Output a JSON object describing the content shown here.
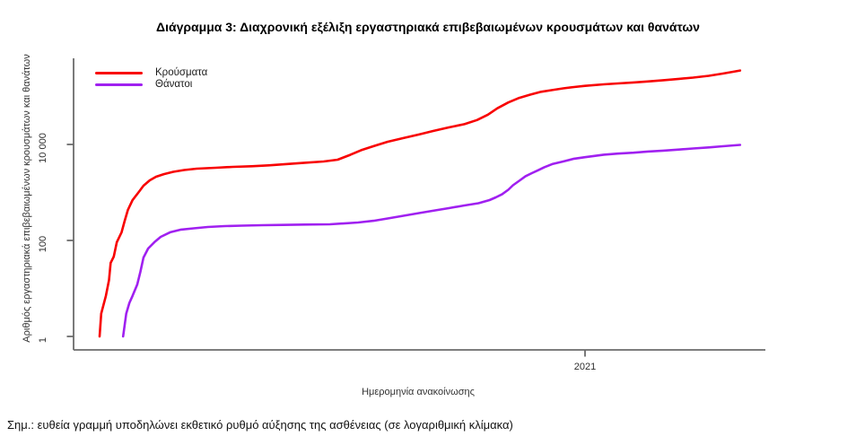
{
  "note": "Σημ.: ευθεία γραμμή υποδηλώνει εκθετικό ρυθμό αύξησης της ασθένειας (σε λογαριθμική κλίμακα)",
  "chart_data": {
    "type": "line",
    "title": "Διάγραμμα 3: Διαχρονική εξέλιξη εργαστηριακά επιβεβαιωμένων κρουσμάτων και θανάτων",
    "xlabel": "Ημερομηνία ανακοίνωσης",
    "ylabel": "Αριθμός εργαστηριακά επιβεβαιωμένων κρουσμάτων και θανάτων",
    "y_scale": "log10",
    "ylim": [
      1,
      500000
    ],
    "grid": false,
    "legend_position": "top-left-inside",
    "axis_color": "#6b6b6b",
    "y_ticks": [
      {
        "value": 1,
        "label": "1"
      },
      {
        "value": 100,
        "label": "100"
      },
      {
        "value": 10000,
        "label": "10 000"
      }
    ],
    "x_ticks": [
      {
        "date": "2021-01-01",
        "label": "2021"
      }
    ],
    "x_range": {
      "start": "2020-02-26",
      "end": "2021-04-10"
    },
    "series": [
      {
        "name": "Κρούσματα",
        "color": "#f80000",
        "points": [
          [
            "2020-02-26",
            1
          ],
          [
            "2020-02-27",
            3
          ],
          [
            "2020-03-01",
            7
          ],
          [
            "2020-03-03",
            15
          ],
          [
            "2020-03-04",
            34
          ],
          [
            "2020-03-06",
            46
          ],
          [
            "2020-03-08",
            92
          ],
          [
            "2020-03-11",
            148
          ],
          [
            "2020-03-13",
            258
          ],
          [
            "2020-03-15",
            430
          ],
          [
            "2020-03-18",
            692
          ],
          [
            "2020-03-22",
            1020
          ],
          [
            "2020-03-25",
            1380
          ],
          [
            "2020-03-29",
            1790
          ],
          [
            "2020-04-02",
            2120
          ],
          [
            "2020-04-07",
            2410
          ],
          [
            "2020-04-13",
            2690
          ],
          [
            "2020-04-20",
            2930
          ],
          [
            "2020-04-28",
            3130
          ],
          [
            "2020-05-10",
            3270
          ],
          [
            "2020-05-21",
            3410
          ],
          [
            "2020-06-02",
            3520
          ],
          [
            "2020-06-13",
            3670
          ],
          [
            "2020-06-25",
            3910
          ],
          [
            "2020-07-06",
            4150
          ],
          [
            "2020-07-18",
            4420
          ],
          [
            "2020-07-27",
            4810
          ],
          [
            "2020-08-04",
            6070
          ],
          [
            "2020-08-11",
            7590
          ],
          [
            "2020-08-19",
            9200
          ],
          [
            "2020-08-28",
            11400
          ],
          [
            "2020-09-07",
            13600
          ],
          [
            "2020-09-17",
            16100
          ],
          [
            "2020-09-26",
            19100
          ],
          [
            "2020-10-06",
            22700
          ],
          [
            "2020-10-16",
            26500
          ],
          [
            "2020-10-24",
            32300
          ],
          [
            "2020-10-31",
            41800
          ],
          [
            "2020-11-06",
            56600
          ],
          [
            "2020-11-13",
            75100
          ],
          [
            "2020-11-20",
            93200
          ],
          [
            "2020-11-27",
            109000
          ],
          [
            "2020-12-04",
            125000
          ],
          [
            "2020-12-11",
            136000
          ],
          [
            "2020-12-18",
            147000
          ],
          [
            "2020-12-25",
            157000
          ],
          [
            "2021-01-01",
            166000
          ],
          [
            "2021-01-13",
            179000
          ],
          [
            "2021-01-22",
            187000
          ],
          [
            "2021-02-01",
            196000
          ],
          [
            "2021-02-10",
            205000
          ],
          [
            "2021-02-20",
            218000
          ],
          [
            "2021-03-02",
            232000
          ],
          [
            "2021-03-11",
            247000
          ],
          [
            "2021-03-21",
            269000
          ],
          [
            "2021-03-30",
            300000
          ],
          [
            "2021-04-10",
            347000
          ]
        ]
      },
      {
        "name": "Θάνατοι",
        "color": "#a020f0",
        "points": [
          [
            "2020-03-12",
            1
          ],
          [
            "2020-03-14",
            3
          ],
          [
            "2020-03-16",
            5
          ],
          [
            "2020-03-18",
            7
          ],
          [
            "2020-03-21",
            12
          ],
          [
            "2020-03-23",
            22
          ],
          [
            "2020-03-25",
            44
          ],
          [
            "2020-03-28",
            68
          ],
          [
            "2020-04-01",
            92
          ],
          [
            "2020-04-05",
            119
          ],
          [
            "2020-04-11",
            148
          ],
          [
            "2020-04-18",
            168
          ],
          [
            "2020-04-26",
            179
          ],
          [
            "2020-05-05",
            191
          ],
          [
            "2020-05-16",
            199
          ],
          [
            "2020-05-27",
            203
          ],
          [
            "2020-06-09",
            208
          ],
          [
            "2020-06-22",
            211
          ],
          [
            "2020-07-06",
            214
          ],
          [
            "2020-07-22",
            217
          ],
          [
            "2020-08-09",
            237
          ],
          [
            "2020-08-19",
            257
          ],
          [
            "2020-08-28",
            287
          ],
          [
            "2020-09-07",
            327
          ],
          [
            "2020-09-17",
            372
          ],
          [
            "2020-09-26",
            415
          ],
          [
            "2020-10-06",
            470
          ],
          [
            "2020-10-16",
            535
          ],
          [
            "2020-10-25",
            596
          ],
          [
            "2020-11-01",
            694
          ],
          [
            "2020-11-05",
            790
          ],
          [
            "2020-11-09",
            915
          ],
          [
            "2020-11-13",
            1140
          ],
          [
            "2020-11-16",
            1410
          ],
          [
            "2020-11-20",
            1750
          ],
          [
            "2020-11-24",
            2180
          ],
          [
            "2020-11-28",
            2520
          ],
          [
            "2020-12-02",
            2900
          ],
          [
            "2020-12-06",
            3350
          ],
          [
            "2020-12-11",
            3890
          ],
          [
            "2020-12-18",
            4420
          ],
          [
            "2020-12-25",
            5050
          ],
          [
            "2021-01-01",
            5430
          ],
          [
            "2021-01-13",
            6130
          ],
          [
            "2021-01-22",
            6450
          ],
          [
            "2021-02-01",
            6730
          ],
          [
            "2021-02-10",
            7110
          ],
          [
            "2021-02-20",
            7420
          ],
          [
            "2021-03-02",
            7810
          ],
          [
            "2021-03-11",
            8250
          ],
          [
            "2021-03-21",
            8690
          ],
          [
            "2021-03-30",
            9170
          ],
          [
            "2021-04-10",
            9770
          ]
        ]
      }
    ]
  }
}
